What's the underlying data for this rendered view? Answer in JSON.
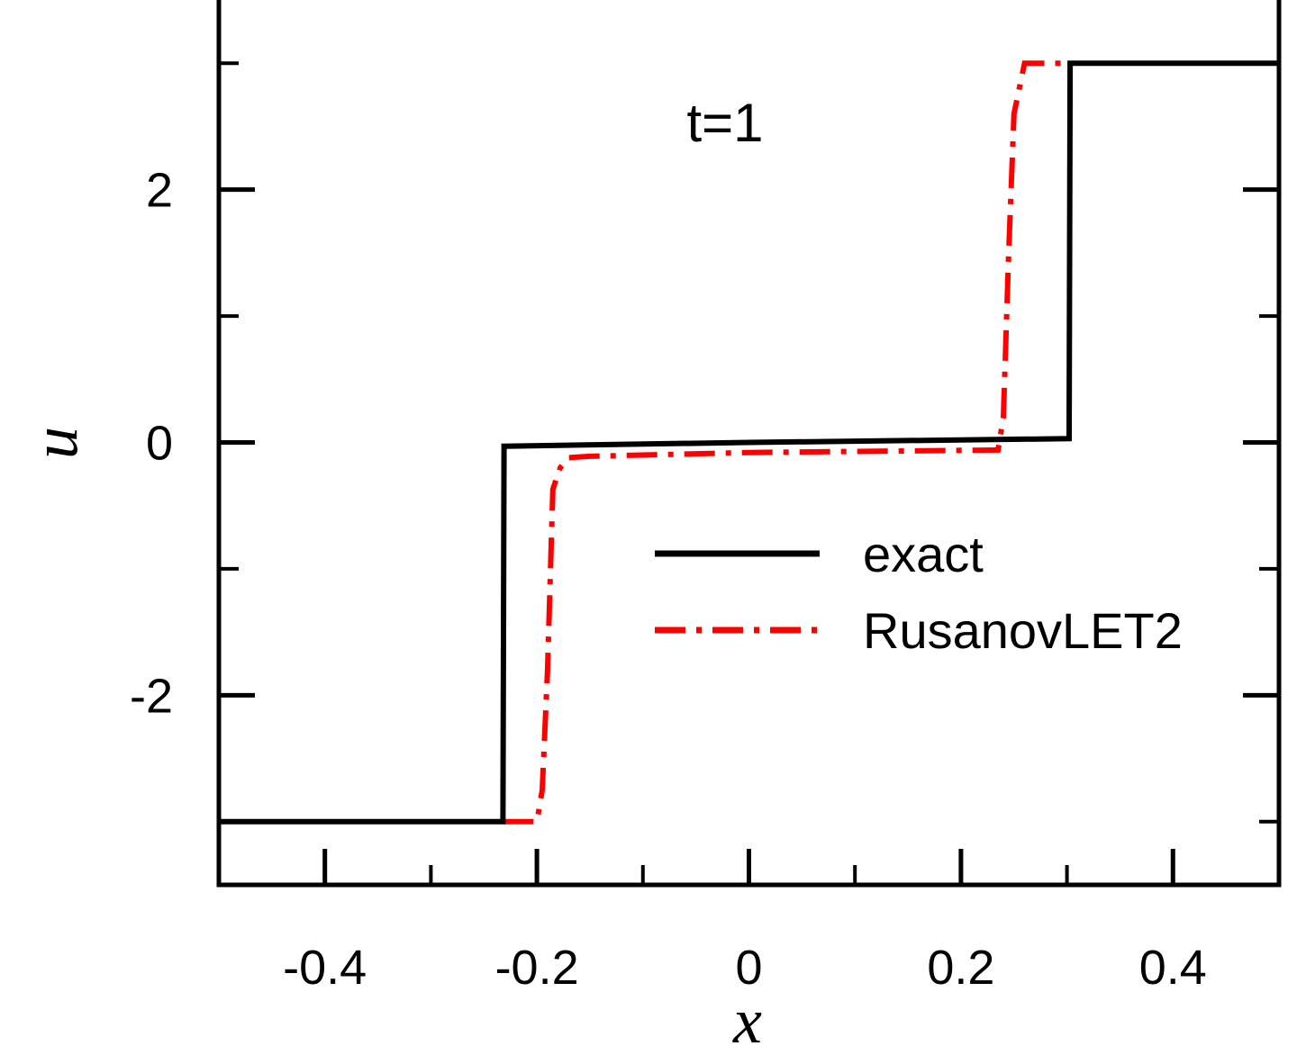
{
  "chart_data": {
    "type": "line",
    "annotation": "t=1",
    "xlabel": "x",
    "ylabel": "u",
    "xlim": [
      -0.5,
      0.5
    ],
    "ylim": [
      -3.5,
      3.5
    ],
    "x_ticks": [
      -0.4,
      -0.2,
      0,
      0.2,
      0.4
    ],
    "x_tick_labels": [
      "-0.4",
      "-0.2",
      "0",
      "0.2",
      "0.4"
    ],
    "y_ticks": [
      -2,
      0,
      2
    ],
    "y_tick_labels": [
      "-2",
      "0",
      "2"
    ],
    "x_minor_step": 0.1,
    "y_minor_step": 1,
    "grid": false,
    "legend_position": "center-right",
    "series": [
      {
        "name": "exact",
        "color": "#000000",
        "style": "solid",
        "points": [
          [
            -0.5,
            -3.0
          ],
          [
            -0.232,
            -3.0
          ],
          [
            -0.231,
            -0.03
          ],
          [
            0.0,
            0.0
          ],
          [
            0.302,
            0.03
          ],
          [
            0.303,
            3.0
          ],
          [
            0.5,
            3.0
          ]
        ]
      },
      {
        "name": "RusanovLET2",
        "color": "#ff0000",
        "style": "dashdot",
        "points": [
          [
            -0.232,
            -3.0
          ],
          [
            -0.2,
            -3.0
          ],
          [
            -0.195,
            -2.75
          ],
          [
            -0.19,
            -1.8
          ],
          [
            -0.185,
            -0.37
          ],
          [
            -0.178,
            -0.2
          ],
          [
            -0.17,
            -0.12
          ],
          [
            -0.15,
            -0.11
          ],
          [
            0.0,
            -0.08
          ],
          [
            0.235,
            -0.06
          ],
          [
            0.24,
            0.2
          ],
          [
            0.245,
            1.5
          ],
          [
            0.25,
            2.6
          ],
          [
            0.26,
            3.0
          ],
          [
            0.3,
            3.0
          ]
        ]
      }
    ]
  }
}
